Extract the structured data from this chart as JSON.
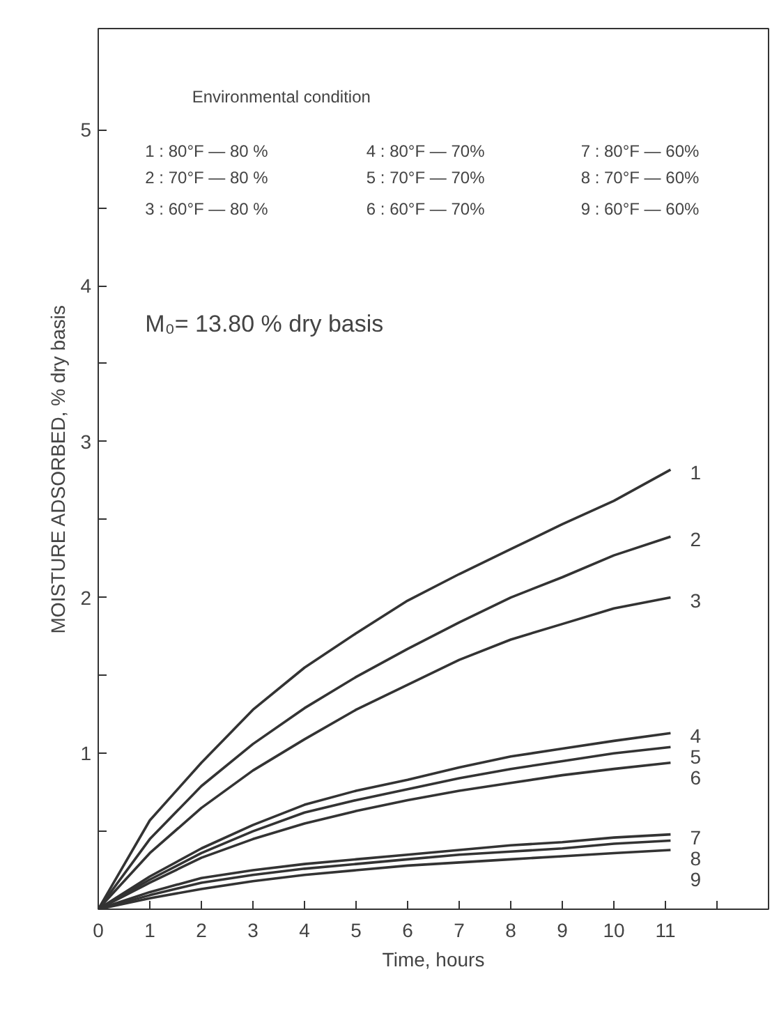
{
  "chart_data": {
    "type": "line",
    "xlabel": "Time, hours",
    "ylabel": "MOISTURE ADSORBED, % dry basis",
    "x": [
      0,
      1,
      2,
      3,
      4,
      5,
      6,
      7,
      8,
      9,
      10,
      11.1
    ],
    "series": [
      {
        "name": "1",
        "color": "#333333",
        "values": [
          0,
          0.57,
          0.94,
          1.28,
          1.55,
          1.77,
          1.98,
          2.15,
          2.31,
          2.47,
          2.62,
          2.82
        ]
      },
      {
        "name": "2",
        "color": "#333333",
        "values": [
          0,
          0.45,
          0.79,
          1.06,
          1.29,
          1.49,
          1.67,
          1.84,
          2.0,
          2.13,
          2.27,
          2.39
        ]
      },
      {
        "name": "3",
        "color": "#333333",
        "values": [
          0,
          0.36,
          0.65,
          0.89,
          1.09,
          1.28,
          1.44,
          1.6,
          1.73,
          1.83,
          1.93,
          2.0
        ]
      },
      {
        "name": "4",
        "color": "#333333",
        "values": [
          0,
          0.21,
          0.39,
          0.54,
          0.67,
          0.76,
          0.83,
          0.91,
          0.98,
          1.03,
          1.08,
          1.13
        ]
      },
      {
        "name": "5",
        "color": "#333333",
        "values": [
          0,
          0.19,
          0.36,
          0.5,
          0.62,
          0.7,
          0.77,
          0.84,
          0.9,
          0.95,
          1.0,
          1.04
        ]
      },
      {
        "name": "6",
        "color": "#333333",
        "values": [
          0,
          0.17,
          0.33,
          0.45,
          0.55,
          0.63,
          0.7,
          0.76,
          0.81,
          0.86,
          0.9,
          0.94
        ]
      },
      {
        "name": "7",
        "color": "#333333",
        "values": [
          0,
          0.11,
          0.2,
          0.25,
          0.29,
          0.32,
          0.35,
          0.38,
          0.41,
          0.43,
          0.46,
          0.48
        ]
      },
      {
        "name": "8",
        "color": "#333333",
        "values": [
          0,
          0.09,
          0.17,
          0.22,
          0.26,
          0.29,
          0.32,
          0.35,
          0.37,
          0.39,
          0.42,
          0.44
        ]
      },
      {
        "name": "9",
        "color": "#333333",
        "values": [
          0,
          0.07,
          0.13,
          0.18,
          0.22,
          0.25,
          0.28,
          0.3,
          0.32,
          0.34,
          0.36,
          0.38
        ]
      }
    ],
    "xlim": [
      0,
      13
    ],
    "ylim": [
      0,
      5.65
    ],
    "xticks": [
      0,
      1,
      2,
      3,
      4,
      5,
      6,
      7,
      8,
      9,
      10,
      11,
      {
        "value": 12,
        "label": null
      }
    ],
    "yticks": [
      {
        "value": 0.5,
        "label": null
      },
      1,
      {
        "value": 1.5,
        "label": null
      },
      2,
      {
        "value": 2.5,
        "label": null
      },
      3,
      {
        "value": 3.5,
        "label": null
      },
      4,
      {
        "value": 4.5,
        "label": null
      },
      5
    ],
    "annotations": [
      "Environmental condition",
      "1 : 80°F — 80 %",
      "2 : 70°F — 80 %",
      "3 : 60°F — 80 %",
      "4 : 80°F — 70%",
      "5 : 70°F — 70%",
      "6 : 60°F — 70%",
      "7 : 80°F — 60%",
      "8 : 70°F — 60%",
      "9 : 60°F — 60%",
      "M₀= 13.80 %  dry basis"
    ],
    "grid": false,
    "legend": false,
    "marker": "none",
    "line_style": "solid"
  }
}
